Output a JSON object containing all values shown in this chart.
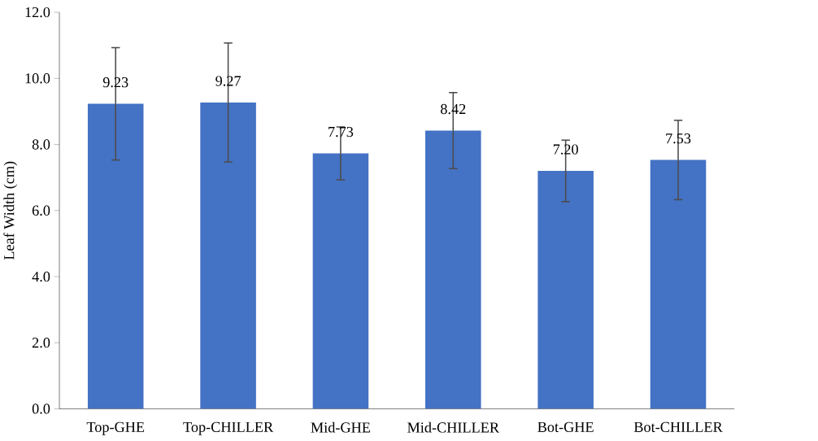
{
  "chart_data": {
    "type": "bar",
    "ylabel": "Leaf Width (cm)",
    "categories": [
      "Top-GHE",
      "Top-CHILLER",
      "Mid-GHE",
      "Mid-CHILLER",
      "Bot-GHE",
      "Bot-CHILLER"
    ],
    "values": [
      9.23,
      9.27,
      7.73,
      8.42,
      7.2,
      7.53
    ],
    "errors": [
      1.7,
      1.8,
      0.8,
      1.15,
      0.93,
      1.2
    ],
    "value_labels": [
      "9.23",
      "9.27",
      "7.73",
      "8.42",
      "7.20",
      "7.53"
    ],
    "color": "#4472c4",
    "ylim": [
      0,
      12
    ],
    "yticks": [
      {
        "value": 0,
        "label": "0.0"
      },
      {
        "value": 2,
        "label": "2.0"
      },
      {
        "value": 4,
        "label": "4.0"
      },
      {
        "value": 6,
        "label": "6.0"
      },
      {
        "value": 8,
        "label": "8.0"
      },
      {
        "value": 10,
        "label": "10.0"
      },
      {
        "value": 12,
        "label": "12.0"
      }
    ],
    "grid": false
  }
}
